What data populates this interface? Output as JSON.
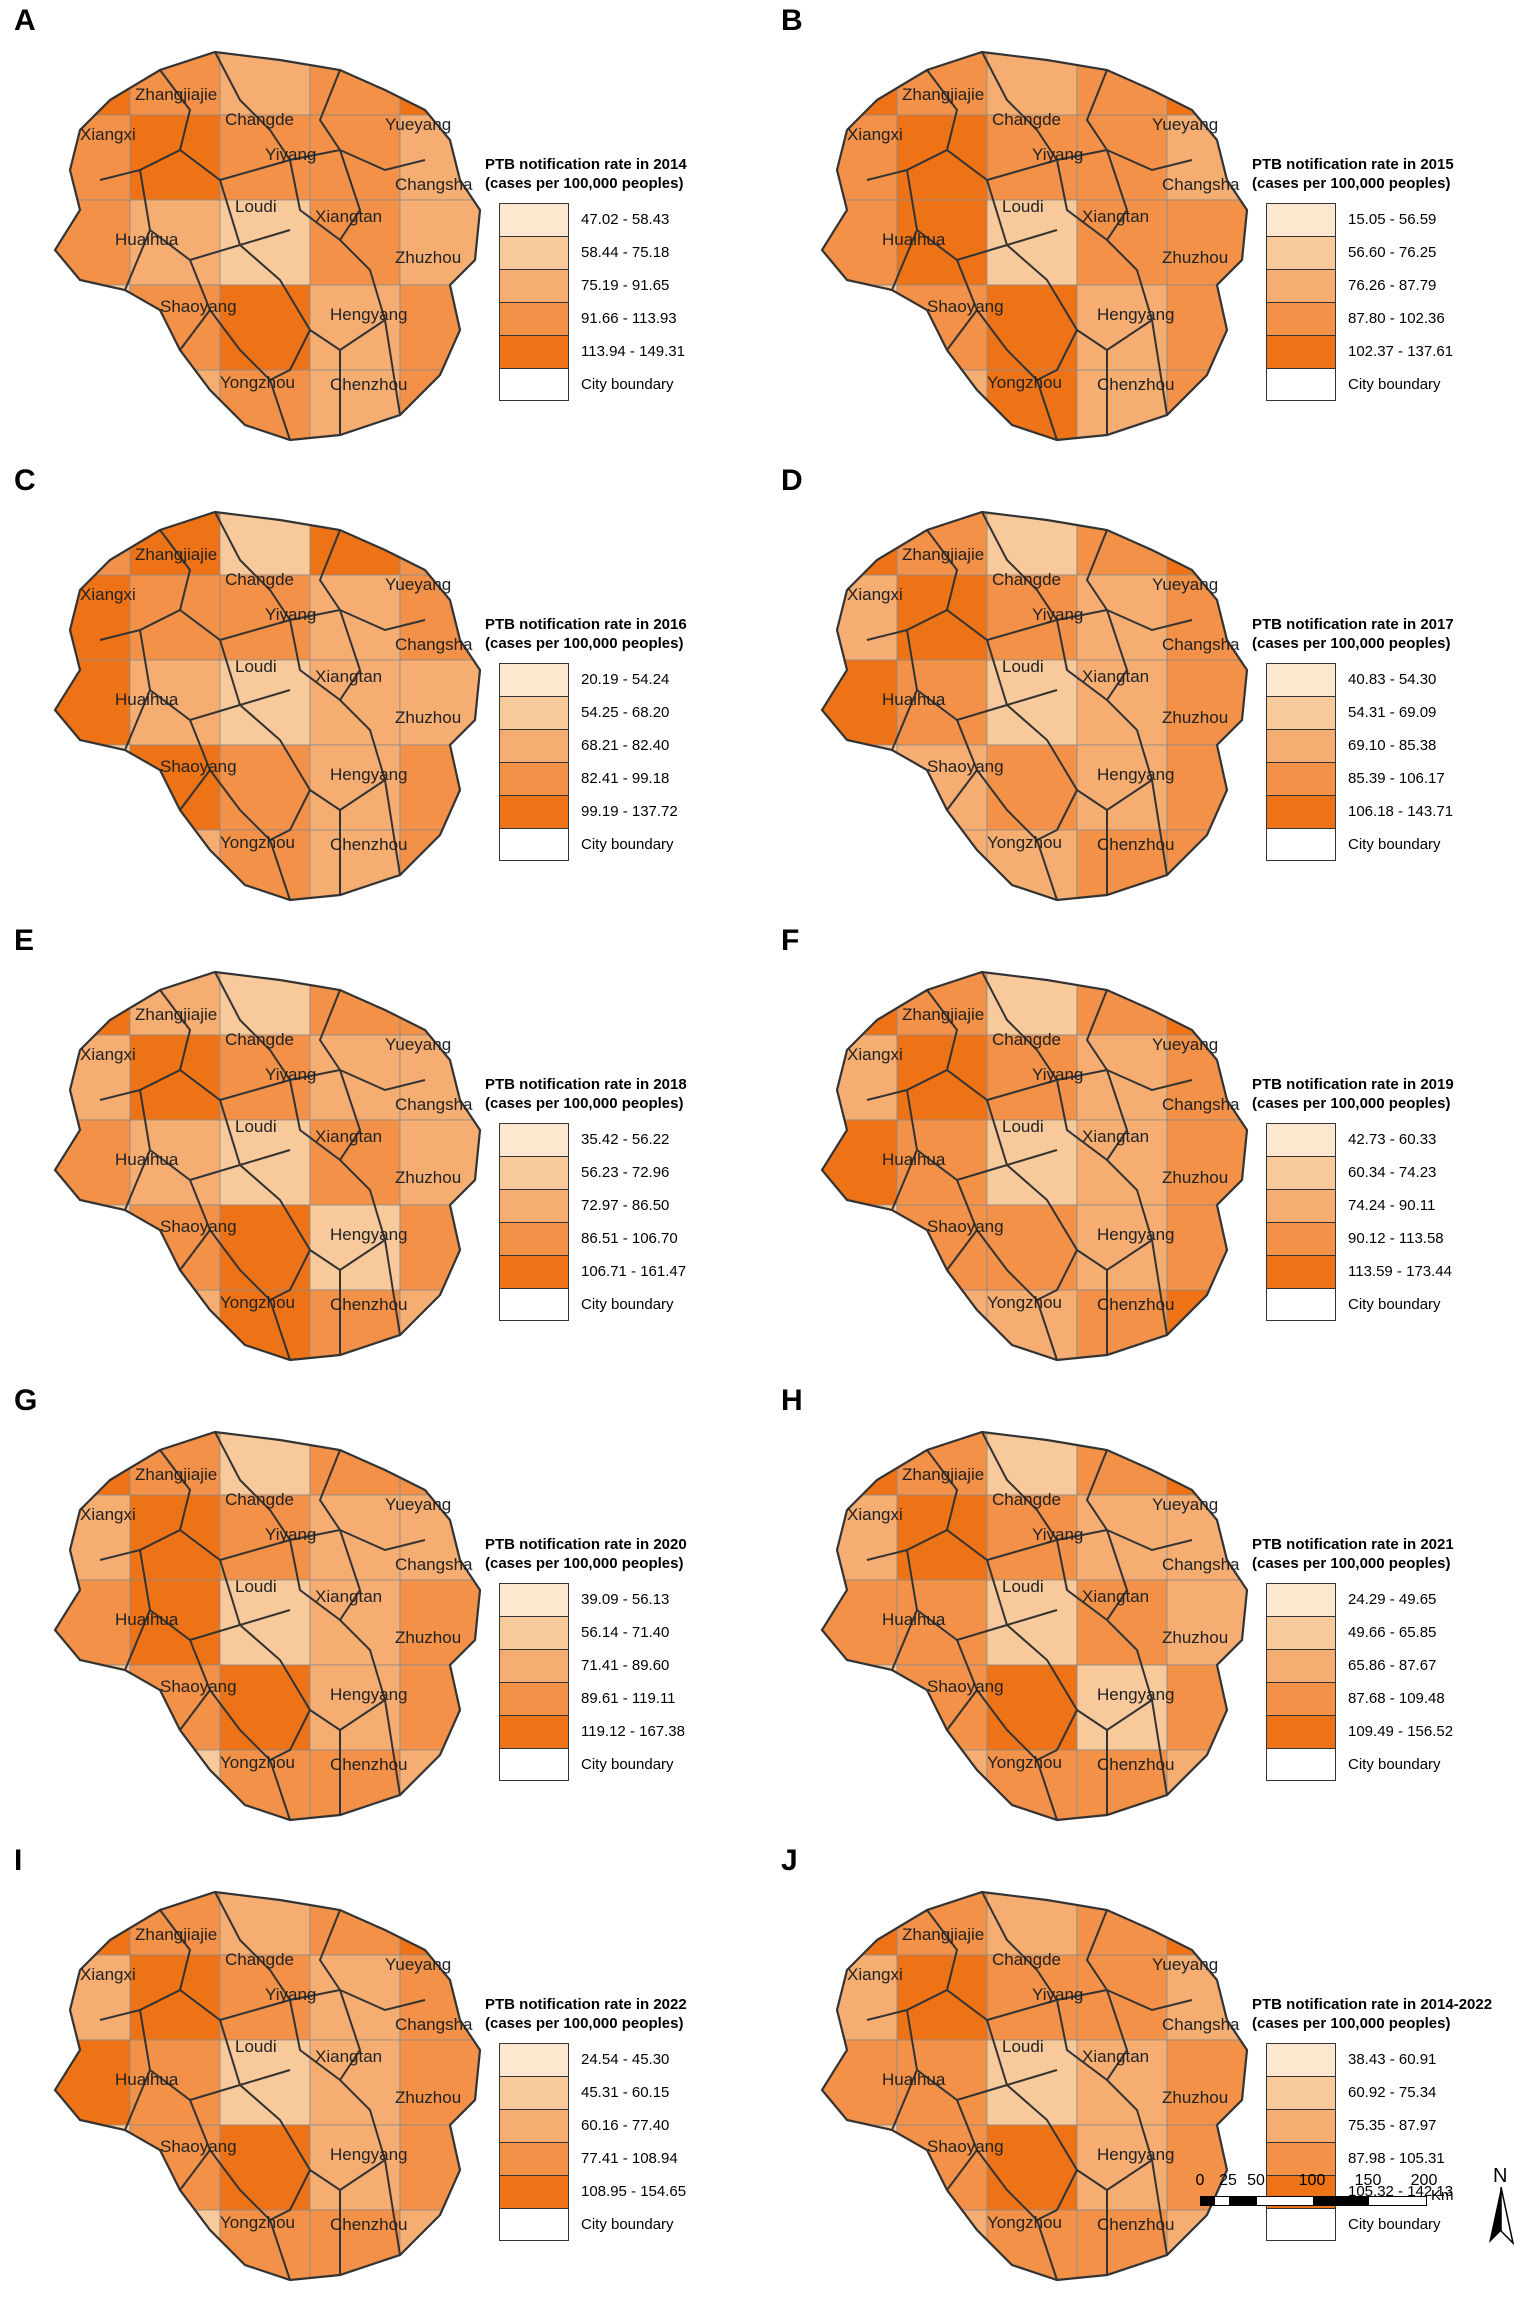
{
  "colors": {
    "classes": [
      "#fde8cf",
      "#f8c99a",
      "#f6ad72",
      "#f29147",
      "#ed7316"
    ],
    "city_boundary": "#ffffff",
    "outline": "#333333"
  },
  "cities": [
    "Zhangjiajie",
    "Changde",
    "Yueyang",
    "Xiangxi",
    "Yiyang",
    "Changsha",
    "Loudi",
    "Xiangtan",
    "Huaihua",
    "Zhuzhou",
    "Shaoyang",
    "Hengyang",
    "Yongzhou",
    "Chenzhou"
  ],
  "panels": [
    {
      "letter": "A",
      "title_line1": "PTB notification rate in 2014",
      "title_line2": "(cases per 100,000 peoples)",
      "classes": [
        "47.02 - 58.43",
        "58.44 - 75.18",
        "75.19 - 91.65",
        "91.66 - 113.93",
        "113.94 - 149.31"
      ],
      "boundary_label": "City boundary"
    },
    {
      "letter": "B",
      "title_line1": "PTB notification rate in 2015",
      "title_line2": "(cases per 100,000 peoples)",
      "classes": [
        "15.05 - 56.59",
        "56.60 - 76.25",
        "76.26 - 87.79",
        "87.80 - 102.36",
        "102.37 - 137.61"
      ],
      "boundary_label": "City boundary"
    },
    {
      "letter": "C",
      "title_line1": "PTB notification rate in 2016",
      "title_line2": "(cases per 100,000 peoples)",
      "classes": [
        "20.19 - 54.24",
        "54.25 - 68.20",
        "68.21 - 82.40",
        "82.41 - 99.18",
        "99.19 - 137.72"
      ],
      "boundary_label": "City boundary"
    },
    {
      "letter": "D",
      "title_line1": "PTB notification rate in 2017",
      "title_line2": "(cases per 100,000 peoples)",
      "classes": [
        "40.83 - 54.30",
        "54.31 - 69.09",
        "69.10 - 85.38",
        "85.39 - 106.17",
        "106.18 - 143.71"
      ],
      "boundary_label": "City boundary"
    },
    {
      "letter": "E",
      "title_line1": "PTB notification rate in  2018",
      "title_line2": "(cases per 100,000 peoples)",
      "classes": [
        "35.42 - 56.22",
        "56.23 - 72.96",
        "72.97 - 86.50",
        "86.51 - 106.70",
        "106.71 - 161.47"
      ],
      "boundary_label": "City boundary"
    },
    {
      "letter": "F",
      "title_line1": "PTB notification rate  in 2019",
      "title_line2": "(cases per 100,000 peoples)",
      "classes": [
        "42.73 - 60.33",
        "60.34 - 74.23",
        "74.24 - 90.11",
        "90.12 - 113.58",
        "113.59 - 173.44"
      ],
      "boundary_label": "City boundary"
    },
    {
      "letter": "G",
      "title_line1": "PTB notification rate in 2020",
      "title_line2": "(cases per 100,000 peoples)",
      "classes": [
        "39.09 - 56.13",
        "56.14 - 71.40",
        "71.41 - 89.60",
        "89.61 - 119.11",
        "119.12 - 167.38"
      ],
      "boundary_label": "City boundary"
    },
    {
      "letter": "H",
      "title_line1": "PTB notification rate in 2021",
      "title_line2": "(cases per 100,000 peoples)",
      "classes": [
        "24.29 - 49.65",
        "49.66 - 65.85",
        "65.86 - 87.67",
        "87.68 - 109.48",
        "109.49 - 156.52"
      ],
      "boundary_label": "City boundary"
    },
    {
      "letter": "I",
      "title_line1": "PTB notification rate in 2022",
      "title_line2": "(cases per 100,000 peoples)",
      "classes": [
        "24.54 - 45.30",
        "45.31 - 60.15",
        "60.16 - 77.40",
        "77.41 - 108.94",
        "108.95 - 154.65"
      ],
      "boundary_label": "City boundary"
    },
    {
      "letter": "J",
      "title_line1": "PTB notification rate in 2014-2022",
      "title_line2": "(cases per 100,000 peoples)",
      "classes": [
        "38.43 - 60.91",
        "60.92 - 75.34",
        "75.35 - 87.97",
        "87.98 - 105.31",
        "105.32 - 142.13"
      ],
      "boundary_label": "City boundary"
    }
  ],
  "scale": {
    "ticks": [
      "0",
      "25",
      "50",
      "100",
      "150",
      "200"
    ],
    "unit": "Km"
  },
  "north_label": "N"
}
